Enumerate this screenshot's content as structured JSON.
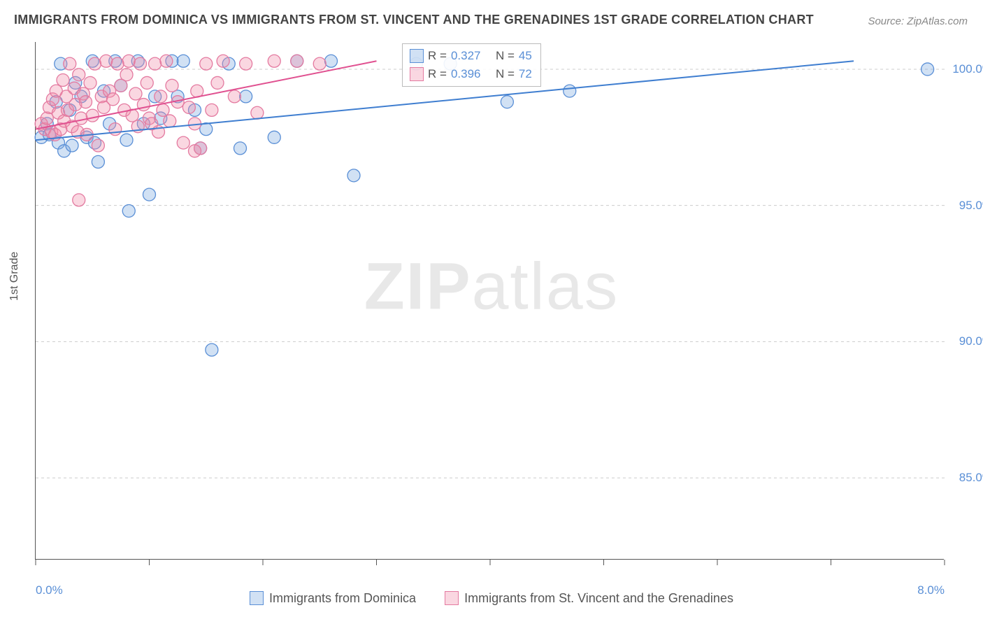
{
  "title": "IMMIGRANTS FROM DOMINICA VS IMMIGRANTS FROM ST. VINCENT AND THE GRENADINES 1ST GRADE CORRELATION CHART",
  "source": "Source: ZipAtlas.com",
  "y_axis_title": "1st Grade",
  "watermark_a": "ZIP",
  "watermark_b": "atlas",
  "chart": {
    "type": "scatter",
    "xlim": [
      0.0,
      8.0
    ],
    "ylim": [
      82.0,
      101.0
    ],
    "x_ticks": [
      0,
      1,
      2,
      3,
      4,
      5,
      6,
      7,
      8
    ],
    "x_tick_labels_shown": {
      "0": "0.0%",
      "8": "8.0%"
    },
    "y_ticks": [
      85.0,
      90.0,
      95.0,
      100.0
    ],
    "y_tick_labels": {
      "85": "85.0%",
      "90": "90.0%",
      "95": "95.0%",
      "100": "100.0%"
    },
    "grid_color": "#cccccc",
    "background_color": "#ffffff",
    "marker_radius": 9,
    "marker_stroke_width": 1.3,
    "series": [
      {
        "name": "Immigrants from Dominica",
        "fill": "rgba(122,168,224,0.35)",
        "stroke": "#5a8fd6",
        "R": "0.327",
        "N": "45",
        "trend": {
          "x1": 0.0,
          "y1": 97.4,
          "x2": 7.2,
          "y2": 100.3,
          "color": "#3f7ed0",
          "width": 2
        },
        "points": [
          [
            0.05,
            97.5
          ],
          [
            0.1,
            98.0
          ],
          [
            0.12,
            97.6
          ],
          [
            0.18,
            98.8
          ],
          [
            0.2,
            97.3
          ],
          [
            0.22,
            100.2
          ],
          [
            0.25,
            97.0
          ],
          [
            0.3,
            98.5
          ],
          [
            0.32,
            97.2
          ],
          [
            0.35,
            99.5
          ],
          [
            0.4,
            99.0
          ],
          [
            0.45,
            97.5
          ],
          [
            0.5,
            100.3
          ],
          [
            0.52,
            97.3
          ],
          [
            0.55,
            96.6
          ],
          [
            0.6,
            99.2
          ],
          [
            0.65,
            98.0
          ],
          [
            0.7,
            100.3
          ],
          [
            0.75,
            99.4
          ],
          [
            0.8,
            97.4
          ],
          [
            0.82,
            94.8
          ],
          [
            0.9,
            100.3
          ],
          [
            0.95,
            98.0
          ],
          [
            1.0,
            95.4
          ],
          [
            1.05,
            99.0
          ],
          [
            1.1,
            98.2
          ],
          [
            1.2,
            100.3
          ],
          [
            1.25,
            99.0
          ],
          [
            1.3,
            100.3
          ],
          [
            1.4,
            98.5
          ],
          [
            1.45,
            97.1
          ],
          [
            1.5,
            97.8
          ],
          [
            1.55,
            89.7
          ],
          [
            1.7,
            100.2
          ],
          [
            1.8,
            97.1
          ],
          [
            1.85,
            99.0
          ],
          [
            2.1,
            97.5
          ],
          [
            2.3,
            100.3
          ],
          [
            2.6,
            100.3
          ],
          [
            2.8,
            96.1
          ],
          [
            3.35,
            100.2
          ],
          [
            3.65,
            100.2
          ],
          [
            4.15,
            98.8
          ],
          [
            4.7,
            99.2
          ],
          [
            7.85,
            100.0
          ]
        ]
      },
      {
        "name": "Immigrants from St. Vincent and the Grenadines",
        "fill": "rgba(240,140,170,0.35)",
        "stroke": "#e47aa0",
        "R": "0.396",
        "N": "72",
        "trend": {
          "x1": 0.0,
          "y1": 97.8,
          "x2": 3.0,
          "y2": 100.3,
          "color": "#e05090",
          "width": 2
        },
        "points": [
          [
            0.05,
            98.0
          ],
          [
            0.08,
            97.8
          ],
          [
            0.1,
            98.2
          ],
          [
            0.12,
            98.6
          ],
          [
            0.14,
            97.7
          ],
          [
            0.15,
            98.9
          ],
          [
            0.17,
            97.6
          ],
          [
            0.18,
            99.2
          ],
          [
            0.2,
            98.4
          ],
          [
            0.22,
            97.8
          ],
          [
            0.24,
            99.6
          ],
          [
            0.25,
            98.1
          ],
          [
            0.27,
            99.0
          ],
          [
            0.28,
            98.5
          ],
          [
            0.3,
            100.2
          ],
          [
            0.32,
            97.9
          ],
          [
            0.34,
            99.3
          ],
          [
            0.35,
            98.7
          ],
          [
            0.37,
            97.7
          ],
          [
            0.38,
            99.8
          ],
          [
            0.4,
            98.2
          ],
          [
            0.42,
            99.1
          ],
          [
            0.44,
            98.8
          ],
          [
            0.45,
            97.6
          ],
          [
            0.48,
            99.5
          ],
          [
            0.5,
            98.3
          ],
          [
            0.52,
            100.2
          ],
          [
            0.55,
            97.2
          ],
          [
            0.58,
            99.0
          ],
          [
            0.6,
            98.6
          ],
          [
            0.62,
            100.3
          ],
          [
            0.65,
            99.2
          ],
          [
            0.68,
            98.9
          ],
          [
            0.7,
            97.8
          ],
          [
            0.72,
            100.2
          ],
          [
            0.75,
            99.4
          ],
          [
            0.78,
            98.5
          ],
          [
            0.8,
            99.8
          ],
          [
            0.82,
            100.3
          ],
          [
            0.85,
            98.3
          ],
          [
            0.88,
            99.1
          ],
          [
            0.9,
            97.9
          ],
          [
            0.92,
            100.2
          ],
          [
            0.95,
            98.7
          ],
          [
            0.98,
            99.5
          ],
          [
            1.0,
            98.2
          ],
          [
            1.02,
            98.0
          ],
          [
            1.05,
            100.2
          ],
          [
            1.08,
            97.7
          ],
          [
            1.1,
            99.0
          ],
          [
            1.12,
            98.5
          ],
          [
            1.15,
            100.3
          ],
          [
            1.18,
            98.1
          ],
          [
            1.2,
            99.4
          ],
          [
            1.25,
            98.8
          ],
          [
            1.3,
            97.3
          ],
          [
            1.35,
            98.6
          ],
          [
            1.4,
            98.0
          ],
          [
            1.42,
            99.2
          ],
          [
            1.45,
            97.1
          ],
          [
            1.5,
            100.2
          ],
          [
            1.55,
            98.5
          ],
          [
            1.6,
            99.5
          ],
          [
            1.65,
            100.3
          ],
          [
            1.75,
            99.0
          ],
          [
            1.85,
            100.2
          ],
          [
            1.95,
            98.4
          ],
          [
            2.1,
            100.3
          ],
          [
            2.3,
            100.3
          ],
          [
            2.5,
            100.2
          ],
          [
            1.4,
            97.0
          ],
          [
            0.38,
            95.2
          ]
        ]
      }
    ]
  },
  "legend_box": {
    "label_R": "R =",
    "label_N": "N ="
  },
  "bottom_legend": {
    "items": [
      {
        "label": "Immigrants from Dominica",
        "fill": "rgba(122,168,224,0.35)",
        "stroke": "#5a8fd6"
      },
      {
        "label": "Immigrants from St. Vincent and the Grenadines",
        "fill": "rgba(240,140,170,0.35)",
        "stroke": "#e47aa0"
      }
    ]
  }
}
